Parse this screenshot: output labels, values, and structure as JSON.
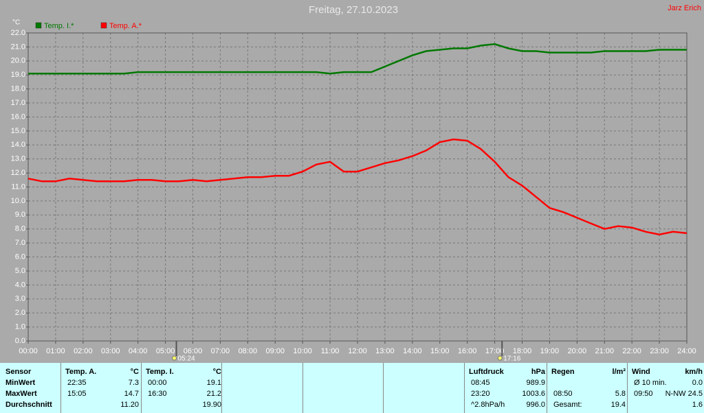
{
  "chart_data": {
    "type": "line",
    "title": "Freitag, 27.10.2023",
    "credit": "Jarz Erich",
    "y_unit": "°C",
    "legend": "top-left",
    "grid": true,
    "x": [
      0,
      0.5,
      1,
      1.5,
      2,
      2.5,
      3,
      3.5,
      4,
      4.5,
      5,
      5.5,
      6,
      6.5,
      7,
      7.5,
      8,
      8.5,
      9,
      9.5,
      10,
      10.5,
      11,
      11.5,
      12,
      12.5,
      13,
      13.5,
      14,
      14.5,
      15,
      15.5,
      16,
      16.5,
      17,
      17.5,
      18,
      18.5,
      19,
      19.5,
      20,
      20.5,
      21,
      21.5,
      22,
      22.5,
      23,
      23.5,
      24
    ],
    "series": [
      {
        "name": "Temp. I.*",
        "color": "#007800",
        "values": [
          19.1,
          19.1,
          19.1,
          19.1,
          19.1,
          19.1,
          19.1,
          19.1,
          19.2,
          19.2,
          19.2,
          19.2,
          19.2,
          19.2,
          19.2,
          19.2,
          19.2,
          19.2,
          19.2,
          19.2,
          19.2,
          19.2,
          19.1,
          19.2,
          19.2,
          19.2,
          19.6,
          20.0,
          20.4,
          20.7,
          20.8,
          20.9,
          20.9,
          21.1,
          21.2,
          20.9,
          20.7,
          20.7,
          20.6,
          20.6,
          20.6,
          20.6,
          20.7,
          20.7,
          20.7,
          20.7,
          20.8,
          20.8,
          20.8
        ]
      },
      {
        "name": "Temp. A.*",
        "color": "#ff0000",
        "values": [
          11.6,
          11.4,
          11.4,
          11.6,
          11.5,
          11.4,
          11.4,
          11.4,
          11.5,
          11.5,
          11.4,
          11.4,
          11.5,
          11.4,
          11.5,
          11.6,
          11.7,
          11.7,
          11.8,
          11.8,
          12.1,
          12.6,
          12.8,
          12.1,
          12.1,
          12.4,
          12.7,
          12.9,
          13.2,
          13.6,
          14.2,
          14.4,
          14.3,
          13.7,
          12.8,
          11.7,
          11.1,
          10.3,
          9.5,
          9.2,
          8.8,
          8.4,
          8.0,
          8.2,
          8.1,
          7.8,
          7.6,
          7.8,
          7.7
        ]
      }
    ],
    "xlim": [
      0,
      24
    ],
    "xticks": [
      {
        "value": 0,
        "label": "00:00"
      },
      {
        "value": 1,
        "label": "01:00"
      },
      {
        "value": 2,
        "label": "02:00"
      },
      {
        "value": 3,
        "label": "03:00"
      },
      {
        "value": 4,
        "label": "04:00"
      },
      {
        "value": 5,
        "label": "05:00"
      },
      {
        "value": 6,
        "label": "06:00"
      },
      {
        "value": 7,
        "label": "07:00"
      },
      {
        "value": 8,
        "label": "08:00"
      },
      {
        "value": 9,
        "label": "09:00"
      },
      {
        "value": 10,
        "label": "10:00"
      },
      {
        "value": 11,
        "label": "11:00"
      },
      {
        "value": 12,
        "label": "12:00"
      },
      {
        "value": 13,
        "label": "13:00"
      },
      {
        "value": 14,
        "label": "14:00"
      },
      {
        "value": 15,
        "label": "15:00"
      },
      {
        "value": 16,
        "label": "16:00"
      },
      {
        "value": 17,
        "label": "17:00"
      },
      {
        "value": 18,
        "label": "18:00"
      },
      {
        "value": 19,
        "label": "19:00"
      },
      {
        "value": 20,
        "label": "20:00"
      },
      {
        "value": 21,
        "label": "21:00"
      },
      {
        "value": 22,
        "label": "22:00"
      },
      {
        "value": 23,
        "label": "23:00"
      },
      {
        "value": 24,
        "label": "24:00"
      }
    ],
    "ylim": [
      0,
      22
    ],
    "yticks": [
      {
        "value": 0,
        "label": "0.0"
      },
      {
        "value": 1,
        "label": "1.0"
      },
      {
        "value": 2,
        "label": "2.0"
      },
      {
        "value": 3,
        "label": "3.0"
      },
      {
        "value": 4,
        "label": "4.0"
      },
      {
        "value": 5,
        "label": "5.0"
      },
      {
        "value": 6,
        "label": "6.0"
      },
      {
        "value": 7,
        "label": "7.0"
      },
      {
        "value": 8,
        "label": "8.0"
      },
      {
        "value": 9,
        "label": "9.0"
      },
      {
        "value": 10,
        "label": "10.0"
      },
      {
        "value": 11,
        "label": "11.0"
      },
      {
        "value": 12,
        "label": "12.0"
      },
      {
        "value": 13,
        "label": "13.0"
      },
      {
        "value": 14,
        "label": "14.0"
      },
      {
        "value": 15,
        "label": "15.0"
      },
      {
        "value": 16,
        "label": "16.0"
      },
      {
        "value": 17,
        "label": "17.0"
      },
      {
        "value": 18,
        "label": "18.0"
      },
      {
        "value": 19,
        "label": "19.0"
      },
      {
        "value": 20,
        "label": "20.0"
      },
      {
        "value": 21,
        "label": "21.0"
      },
      {
        "value": 22,
        "label": "22.0"
      }
    ],
    "annotations": [
      {
        "x": 5.4,
        "label": "05:24"
      },
      {
        "x": 17.267,
        "label": "17:16"
      }
    ]
  },
  "table": {
    "row_labels": [
      "Sensor",
      "MinWert",
      "MaxWert",
      "Durchschnitt"
    ],
    "groups": [
      {
        "header": [
          "Temp. A.",
          "°C"
        ],
        "rows": [
          {
            "time": "22:35",
            "value": "7.3"
          },
          {
            "time": "15:05",
            "value": "14.7"
          },
          {
            "value": "11.20"
          }
        ]
      },
      {
        "header": [
          "Temp. I.",
          "°C"
        ],
        "rows": [
          {
            "time": "00:00",
            "value": "19.1"
          },
          {
            "time": "16:30",
            "value": "21.2"
          },
          {
            "value": "19.90"
          }
        ]
      },
      {
        "header": [
          "Luftdruck",
          "hPa"
        ],
        "rows": [
          {
            "time": "08:45",
            "value": "989.9"
          },
          {
            "time": "23:20",
            "value": "1003.6"
          },
          {
            "time": "^2.8hPa/h",
            "value": "996.0"
          }
        ]
      },
      {
        "header": [
          "Regen",
          "l/m²"
        ],
        "rows": [
          null,
          {
            "time": "08:50",
            "value": "5.8"
          },
          {
            "time": "Gesamt:",
            "value": "19.4"
          }
        ]
      },
      {
        "header": [
          "Wind",
          "km/h"
        ],
        "rows": [
          {
            "time": "Ø 10 min.",
            "value": "0.0"
          },
          {
            "time": "09:50",
            "value": "N-NW 24.5"
          },
          {
            "value": "1.6"
          }
        ]
      }
    ]
  }
}
